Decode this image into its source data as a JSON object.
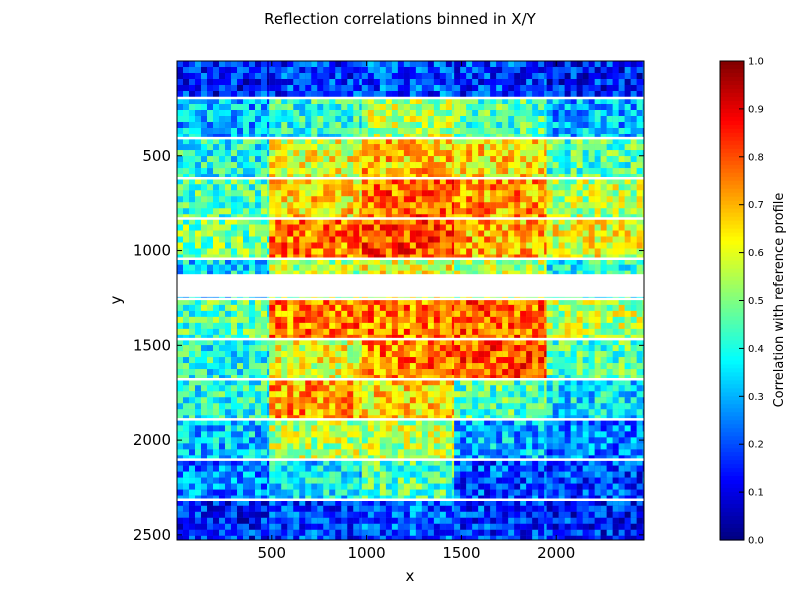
{
  "chart_data": {
    "type": "heatmap",
    "title": "Reflection correlations binned in X/Y",
    "xlabel": "x",
    "ylabel": "y",
    "xlim": [
      0,
      2463
    ],
    "ylim": [
      2527,
      0
    ],
    "x_ticks": [
      500,
      1000,
      1500,
      2000
    ],
    "y_ticks": [
      500,
      1000,
      1500,
      2000,
      2500
    ],
    "grid": false,
    "legend": "none",
    "colorbar": {
      "label": "Correlation with reference profile",
      "range": [
        0.0,
        1.0
      ],
      "ticks": [
        "0.0",
        "0.1",
        "0.2",
        "0.3",
        "0.4",
        "0.5",
        "0.6",
        "0.7",
        "0.8",
        "0.9",
        "1.0"
      ],
      "colormap": "jet"
    },
    "panel_gaps_y": [
      195,
      407,
      619,
      831,
      1043,
      1255,
      1467,
      1679,
      1891,
      2103,
      2315
    ],
    "x_blocks": [
      0,
      487,
      975,
      1462,
      1950,
      2463
    ],
    "y_blocks": [
      0,
      195,
      407,
      619,
      831,
      1043,
      1255,
      1467,
      1679,
      1891,
      2103,
      2315,
      2527
    ],
    "block_correlation": [
      [
        0.15,
        0.18,
        0.2,
        0.18,
        0.15
      ],
      [
        0.3,
        0.42,
        0.55,
        0.45,
        0.3
      ],
      [
        0.4,
        0.6,
        0.68,
        0.65,
        0.45
      ],
      [
        0.45,
        0.65,
        0.78,
        0.72,
        0.55
      ],
      [
        0.48,
        0.75,
        0.8,
        0.7,
        0.6
      ],
      [
        0.35,
        0.55,
        0.6,
        0.55,
        0.4
      ],
      [
        0.45,
        0.75,
        0.75,
        0.78,
        0.55
      ],
      [
        0.4,
        0.6,
        0.75,
        0.8,
        0.45
      ],
      [
        0.4,
        0.72,
        0.65,
        0.45,
        0.35
      ],
      [
        0.32,
        0.55,
        0.55,
        0.3,
        0.25
      ],
      [
        0.25,
        0.35,
        0.45,
        0.2,
        0.18
      ],
      [
        0.15,
        0.18,
        0.22,
        0.18,
        0.15
      ]
    ]
  }
}
